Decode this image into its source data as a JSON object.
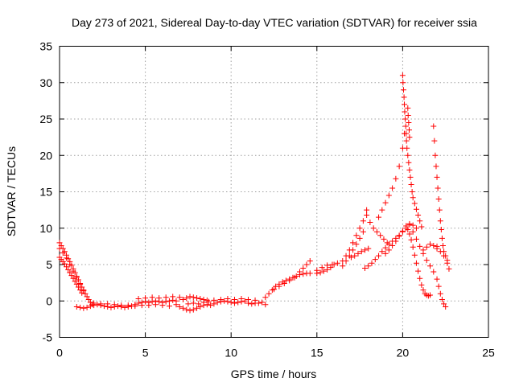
{
  "chart_data": {
    "type": "scatter",
    "title": "Day 273 of 2021, Sidereal Day-to-day VTEC variation (SDTVAR) for receiver ssia",
    "xlabel": "GPS time / hours",
    "ylabel": "SDTVAR / TECUs",
    "xlim": [
      0,
      25
    ],
    "ylim": [
      -5,
      35
    ],
    "xticks": [
      "0",
      "5",
      "10",
      "15",
      "20",
      "25"
    ],
    "yticks": [
      "-5",
      "0",
      "5",
      "10",
      "15",
      "20",
      "25",
      "30",
      "35"
    ],
    "grid": true,
    "marker": "+",
    "color": "#ff0000",
    "series": [
      {
        "name": "SDTVAR",
        "points": [
          [
            0.0,
            8.0
          ],
          [
            0.1,
            7.6
          ],
          [
            0.2,
            7.2
          ],
          [
            0.3,
            6.8
          ],
          [
            0.4,
            6.3
          ],
          [
            0.5,
            5.8
          ],
          [
            0.6,
            5.4
          ],
          [
            0.7,
            4.9
          ],
          [
            0.8,
            4.4
          ],
          [
            0.9,
            3.9
          ],
          [
            1.0,
            3.4
          ],
          [
            1.1,
            2.9
          ],
          [
            1.2,
            2.4
          ],
          [
            1.3,
            1.9
          ],
          [
            1.4,
            1.4
          ],
          [
            1.5,
            1.0
          ],
          [
            1.6,
            0.6
          ],
          [
            1.7,
            0.2
          ],
          [
            1.8,
            -0.2
          ],
          [
            1.9,
            -0.5
          ],
          [
            0.0,
            6.0
          ],
          [
            0.1,
            5.7
          ],
          [
            0.2,
            5.4
          ],
          [
            0.3,
            5.1
          ],
          [
            0.4,
            4.7
          ],
          [
            0.5,
            4.3
          ],
          [
            0.6,
            3.9
          ],
          [
            0.7,
            3.5
          ],
          [
            0.8,
            3.1
          ],
          [
            0.9,
            2.7
          ],
          [
            1.0,
            2.3
          ],
          [
            1.1,
            1.9
          ],
          [
            1.2,
            1.5
          ],
          [
            1.3,
            1.1
          ],
          [
            0.0,
            7.2
          ],
          [
            0.2,
            6.6
          ],
          [
            0.4,
            5.9
          ],
          [
            0.6,
            5.0
          ],
          [
            0.8,
            4.1
          ],
          [
            1.0,
            3.2
          ],
          [
            1.2,
            2.3
          ],
          [
            1.4,
            1.5
          ],
          [
            1.0,
            -0.8
          ],
          [
            1.2,
            -0.9
          ],
          [
            1.4,
            -1.0
          ],
          [
            1.6,
            -0.9
          ],
          [
            1.8,
            -0.7
          ],
          [
            2.0,
            -0.6
          ],
          [
            2.2,
            -0.5
          ],
          [
            2.4,
            -0.6
          ],
          [
            2.6,
            -0.7
          ],
          [
            2.8,
            -0.8
          ],
          [
            3.0,
            -0.9
          ],
          [
            3.2,
            -0.8
          ],
          [
            3.4,
            -0.7
          ],
          [
            3.6,
            -0.8
          ],
          [
            3.8,
            -0.9
          ],
          [
            4.0,
            -0.8
          ],
          [
            4.2,
            -0.7
          ],
          [
            4.4,
            -0.5
          ],
          [
            4.6,
            -0.3
          ],
          [
            4.8,
            -0.2
          ],
          [
            5.0,
            -0.1
          ],
          [
            5.2,
            -0.2
          ],
          [
            5.4,
            -0.1
          ],
          [
            5.6,
            0.0
          ],
          [
            5.8,
            -0.1
          ],
          [
            6.0,
            -0.2
          ],
          [
            6.2,
            -0.1
          ],
          [
            6.4,
            0.0
          ],
          [
            6.6,
            0.1
          ],
          [
            6.8,
            0.0
          ],
          [
            2.0,
            -0.3
          ],
          [
            2.4,
            -0.4
          ],
          [
            2.8,
            -0.4
          ],
          [
            3.2,
            -0.5
          ],
          [
            3.6,
            -0.6
          ],
          [
            4.0,
            -0.6
          ],
          [
            4.4,
            -0.7
          ],
          [
            4.8,
            -0.6
          ],
          [
            5.2,
            -0.6
          ],
          [
            5.6,
            -0.5
          ],
          [
            6.0,
            -0.6
          ],
          [
            6.4,
            -0.7
          ],
          [
            6.8,
            -0.5
          ],
          [
            4.6,
            0.3
          ],
          [
            5.0,
            0.4
          ],
          [
            5.4,
            0.5
          ],
          [
            5.8,
            0.4
          ],
          [
            6.2,
            0.5
          ],
          [
            6.6,
            0.6
          ],
          [
            7.0,
            0.5
          ],
          [
            7.0,
            -0.8
          ],
          [
            7.2,
            -1.0
          ],
          [
            7.4,
            -1.2
          ],
          [
            7.6,
            -1.3
          ],
          [
            7.8,
            -1.2
          ],
          [
            8.0,
            -1.0
          ],
          [
            8.2,
            -0.8
          ],
          [
            8.4,
            -0.6
          ],
          [
            8.6,
            -0.5
          ],
          [
            8.8,
            -0.6
          ],
          [
            7.2,
            0.2
          ],
          [
            7.4,
            0.4
          ],
          [
            7.6,
            0.6
          ],
          [
            7.8,
            0.5
          ],
          [
            8.0,
            0.4
          ],
          [
            8.2,
            0.3
          ],
          [
            8.4,
            0.2
          ],
          [
            8.6,
            0.1
          ],
          [
            7.5,
            -0.4
          ],
          [
            7.8,
            -0.3
          ],
          [
            8.1,
            -0.4
          ],
          [
            8.4,
            -0.2
          ],
          [
            8.7,
            -0.1
          ],
          [
            9.0,
            -0.4
          ],
          [
            9.2,
            -0.2
          ],
          [
            9.4,
            -0.1
          ],
          [
            9.6,
            0.0
          ],
          [
            9.8,
            -0.1
          ],
          [
            10.0,
            -0.2
          ],
          [
            10.2,
            -0.3
          ],
          [
            10.4,
            -0.2
          ],
          [
            10.6,
            -0.1
          ],
          [
            10.8,
            0.0
          ],
          [
            9.0,
            0.1
          ],
          [
            9.4,
            0.2
          ],
          [
            9.8,
            0.3
          ],
          [
            10.2,
            0.2
          ],
          [
            10.6,
            0.3
          ],
          [
            11.0,
            0.2
          ],
          [
            11.4,
            0.1
          ],
          [
            11.0,
            -0.3
          ],
          [
            11.2,
            -0.4
          ],
          [
            11.4,
            -0.3
          ],
          [
            11.6,
            -0.3
          ],
          [
            11.8,
            -0.2
          ],
          [
            12.0,
            -0.5
          ],
          [
            12.0,
            0.5
          ],
          [
            12.2,
            1.0
          ],
          [
            12.4,
            1.5
          ],
          [
            12.6,
            2.0
          ],
          [
            12.8,
            2.3
          ],
          [
            13.0,
            2.6
          ],
          [
            13.2,
            2.8
          ],
          [
            13.4,
            3.0
          ],
          [
            13.6,
            3.2
          ],
          [
            13.8,
            3.4
          ],
          [
            14.0,
            3.6
          ],
          [
            14.2,
            3.7
          ],
          [
            14.4,
            3.8
          ],
          [
            14.6,
            3.8
          ],
          [
            12.5,
            1.6
          ],
          [
            12.8,
            2.0
          ],
          [
            13.1,
            2.4
          ],
          [
            13.4,
            2.8
          ],
          [
            13.7,
            3.2
          ],
          [
            14.0,
            4.0
          ],
          [
            14.2,
            4.5
          ],
          [
            14.4,
            5.0
          ],
          [
            14.6,
            5.5
          ],
          [
            15.0,
            3.8
          ],
          [
            15.2,
            3.9
          ],
          [
            15.4,
            4.1
          ],
          [
            15.6,
            4.3
          ],
          [
            15.8,
            4.6
          ],
          [
            16.0,
            5.0
          ],
          [
            15.0,
            4.2
          ],
          [
            15.3,
            4.6
          ],
          [
            15.6,
            4.9
          ],
          [
            15.9,
            5.0
          ],
          [
            16.2,
            5.2
          ],
          [
            16.5,
            4.8
          ],
          [
            16.7,
            5.5
          ],
          [
            16.9,
            6.2
          ],
          [
            17.1,
            7.0
          ],
          [
            17.3,
            7.8
          ],
          [
            17.5,
            8.6
          ],
          [
            17.7,
            9.5
          ],
          [
            16.5,
            5.5
          ],
          [
            16.7,
            6.2
          ],
          [
            16.9,
            7.0
          ],
          [
            17.1,
            8.0
          ],
          [
            17.3,
            9.0
          ],
          [
            17.5,
            10.0
          ],
          [
            17.7,
            11.0
          ],
          [
            17.9,
            12.5
          ],
          [
            17.0,
            6.0
          ],
          [
            17.2,
            6.2
          ],
          [
            17.4,
            6.5
          ],
          [
            17.6,
            6.8
          ],
          [
            17.8,
            7.0
          ],
          [
            18.0,
            7.2
          ],
          [
            17.8,
            4.5
          ],
          [
            18.0,
            4.8
          ],
          [
            18.2,
            5.2
          ],
          [
            18.4,
            5.7
          ],
          [
            18.6,
            6.2
          ],
          [
            18.8,
            6.8
          ],
          [
            19.0,
            7.3
          ],
          [
            19.2,
            7.8
          ],
          [
            19.4,
            8.2
          ],
          [
            19.6,
            8.6
          ],
          [
            19.8,
            9.0
          ],
          [
            20.0,
            9.5
          ],
          [
            20.2,
            10.0
          ],
          [
            20.4,
            10.5
          ],
          [
            17.9,
            11.8
          ],
          [
            18.1,
            10.8
          ],
          [
            18.3,
            10.0
          ],
          [
            18.5,
            9.5
          ],
          [
            18.7,
            9.0
          ],
          [
            18.9,
            8.5
          ],
          [
            19.1,
            8.0
          ],
          [
            18.6,
            11.5
          ],
          [
            18.8,
            12.5
          ],
          [
            19.0,
            13.5
          ],
          [
            19.2,
            14.5
          ],
          [
            19.4,
            15.5
          ],
          [
            19.6,
            16.8
          ],
          [
            19.8,
            18.5
          ],
          [
            20.0,
            21.0
          ],
          [
            20.1,
            23.0
          ],
          [
            19.0,
            6.5
          ],
          [
            19.2,
            7.0
          ],
          [
            19.4,
            7.6
          ],
          [
            19.6,
            8.2
          ],
          [
            19.8,
            8.9
          ],
          [
            20.0,
            9.6
          ],
          [
            20.2,
            10.3
          ],
          [
            20.4,
            10.6
          ],
          [
            20.6,
            10.4
          ],
          [
            20.8,
            10.0
          ],
          [
            20.0,
            31.0
          ],
          [
            20.02,
            30.0
          ],
          [
            20.05,
            29.0
          ],
          [
            20.08,
            28.0
          ],
          [
            20.1,
            27.0
          ],
          [
            20.12,
            26.0
          ],
          [
            20.15,
            25.0
          ],
          [
            20.18,
            24.0
          ],
          [
            20.2,
            23.0
          ],
          [
            20.22,
            22.0
          ],
          [
            20.25,
            21.0
          ],
          [
            20.3,
            20.0
          ],
          [
            20.35,
            19.0
          ],
          [
            20.4,
            18.0
          ],
          [
            20.45,
            17.0
          ],
          [
            20.5,
            16.0
          ],
          [
            20.55,
            15.0
          ],
          [
            20.6,
            14.2
          ],
          [
            20.7,
            13.4
          ],
          [
            20.8,
            12.6
          ],
          [
            20.9,
            11.8
          ],
          [
            21.0,
            11.0
          ],
          [
            21.1,
            10.2
          ],
          [
            20.3,
            26.5
          ],
          [
            20.32,
            25.5
          ],
          [
            20.35,
            24.5
          ],
          [
            20.38,
            23.5
          ],
          [
            20.4,
            22.5
          ],
          [
            20.3,
            9.8
          ],
          [
            20.4,
            9.2
          ],
          [
            20.5,
            8.4
          ],
          [
            20.6,
            7.4
          ],
          [
            20.7,
            6.3
          ],
          [
            20.8,
            5.2
          ],
          [
            20.9,
            4.1
          ],
          [
            21.0,
            3.1
          ],
          [
            21.1,
            2.2
          ],
          [
            21.2,
            1.5
          ],
          [
            21.3,
            1.0
          ],
          [
            21.4,
            0.8
          ],
          [
            21.5,
            0.7
          ],
          [
            21.6,
            0.8
          ],
          [
            20.6,
            9.5
          ],
          [
            20.8,
            8.5
          ],
          [
            21.0,
            7.5
          ],
          [
            21.2,
            6.5
          ],
          [
            21.4,
            5.6
          ],
          [
            21.6,
            4.8
          ],
          [
            21.8,
            4.0
          ],
          [
            22.0,
            3.0
          ],
          [
            22.1,
            2.0
          ],
          [
            22.2,
            1.0
          ],
          [
            22.3,
            0.2
          ],
          [
            22.4,
            -0.4
          ],
          [
            22.5,
            -0.8
          ],
          [
            21.2,
            7.0
          ],
          [
            21.4,
            7.4
          ],
          [
            21.6,
            7.8
          ],
          [
            21.8,
            7.6
          ],
          [
            22.0,
            7.2
          ],
          [
            21.8,
            24.0
          ],
          [
            21.85,
            22.0
          ],
          [
            21.9,
            20.0
          ],
          [
            21.95,
            18.5
          ],
          [
            22.0,
            17.0
          ],
          [
            22.05,
            15.5
          ],
          [
            22.1,
            14.0
          ],
          [
            22.15,
            12.5
          ],
          [
            22.2,
            11.0
          ],
          [
            22.25,
            9.8
          ],
          [
            22.3,
            8.6
          ],
          [
            22.35,
            7.6
          ],
          [
            22.4,
            6.8
          ],
          [
            22.5,
            6.2
          ],
          [
            22.6,
            5.6
          ],
          [
            22.7,
            4.4
          ],
          [
            22.0,
            7.5
          ],
          [
            22.2,
            6.8
          ],
          [
            22.4,
            6.2
          ],
          [
            22.6,
            5.2
          ]
        ]
      }
    ]
  }
}
